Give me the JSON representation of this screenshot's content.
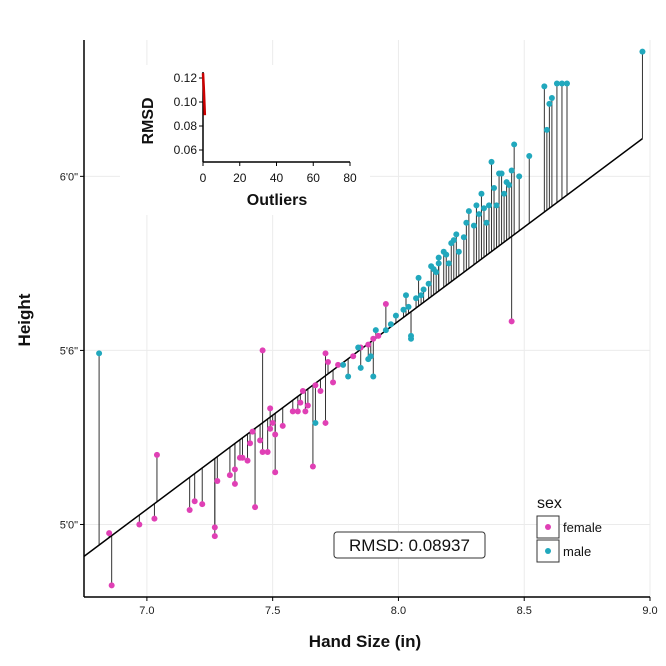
{
  "chart_data": [
    {
      "type": "scatter",
      "xlabel": "Hand Size (in)",
      "ylabel": "Height",
      "xlim": [
        6.75,
        9.0
      ],
      "ylim": [
        57.5,
        76.7
      ],
      "x_ticks": [
        7.0,
        7.5,
        8.0,
        8.5,
        9.0
      ],
      "x_tick_labels": [
        "7.0",
        "7.5",
        "8.0",
        "8.5",
        "9.0"
      ],
      "y_ticks": [
        60,
        66,
        72
      ],
      "y_tick_labels": [
        "5'0\"",
        "5'6\"",
        "6'0\""
      ],
      "grid": true,
      "fit_line": {
        "x": [
          6.75,
          8.97
        ],
        "y": [
          58.9,
          73.3
        ]
      },
      "residual_segments": true,
      "annotation": "RMSD: 0.08937",
      "legend": {
        "title": "sex",
        "position": "bottom-right",
        "entries": [
          "female",
          "male"
        ]
      },
      "colors": {
        "female": "#e040b5",
        "male": "#21a8bd",
        "fit_line": "#000000",
        "segment": "#333333"
      },
      "series": [
        {
          "name": "female",
          "points": [
            [
              6.85,
              59.7
            ],
            [
              6.86,
              57.9
            ],
            [
              6.97,
              60.0
            ],
            [
              7.03,
              60.2
            ],
            [
              7.04,
              62.4
            ],
            [
              7.17,
              60.5
            ],
            [
              7.19,
              60.8
            ],
            [
              7.22,
              60.7
            ],
            [
              7.27,
              59.9
            ],
            [
              7.27,
              59.6
            ],
            [
              7.28,
              61.5
            ],
            [
              7.33,
              61.7
            ],
            [
              7.35,
              61.9
            ],
            [
              7.35,
              61.4
            ],
            [
              7.37,
              62.3
            ],
            [
              7.38,
              62.3
            ],
            [
              7.4,
              62.2
            ],
            [
              7.41,
              62.8
            ],
            [
              7.42,
              63.2
            ],
            [
              7.43,
              60.6
            ],
            [
              7.45,
              62.9
            ],
            [
              7.46,
              62.5
            ],
            [
              7.46,
              66.0
            ],
            [
              7.48,
              62.5
            ],
            [
              7.49,
              64.0
            ],
            [
              7.49,
              63.3
            ],
            [
              7.5,
              63.5
            ],
            [
              7.51,
              63.1
            ],
            [
              7.51,
              61.8
            ],
            [
              7.54,
              63.4
            ],
            [
              7.58,
              63.9
            ],
            [
              7.6,
              63.9
            ],
            [
              7.61,
              64.2
            ],
            [
              7.62,
              64.6
            ],
            [
              7.63,
              63.9
            ],
            [
              7.64,
              64.1
            ],
            [
              7.66,
              62.0
            ],
            [
              7.67,
              64.8
            ],
            [
              7.69,
              64.6
            ],
            [
              7.71,
              65.9
            ],
            [
              7.71,
              63.5
            ],
            [
              7.72,
              65.6
            ],
            [
              7.74,
              64.9
            ],
            [
              7.76,
              65.5
            ],
            [
              7.82,
              65.8
            ],
            [
              7.85,
              66.1
            ],
            [
              7.88,
              66.2
            ],
            [
              7.9,
              66.4
            ],
            [
              7.92,
              66.5
            ],
            [
              7.95,
              67.6
            ],
            [
              8.45,
              67.0
            ]
          ]
        },
        {
          "name": "male",
          "points": [
            [
              6.81,
              65.9
            ],
            [
              7.67,
              63.5
            ],
            [
              7.78,
              65.5
            ],
            [
              7.8,
              65.1
            ],
            [
              7.84,
              66.1
            ],
            [
              7.85,
              65.4
            ],
            [
              7.88,
              65.7
            ],
            [
              7.89,
              65.8
            ],
            [
              7.9,
              65.1
            ],
            [
              7.91,
              66.7
            ],
            [
              7.95,
              66.7
            ],
            [
              7.97,
              66.9
            ],
            [
              7.99,
              67.2
            ],
            [
              8.02,
              67.4
            ],
            [
              8.03,
              67.9
            ],
            [
              8.04,
              67.5
            ],
            [
              8.05,
              66.4
            ],
            [
              8.05,
              66.5
            ],
            [
              8.07,
              67.8
            ],
            [
              8.08,
              68.5
            ],
            [
              8.09,
              67.9
            ],
            [
              8.1,
              68.1
            ],
            [
              8.12,
              68.3
            ],
            [
              8.13,
              68.9
            ],
            [
              8.14,
              68.8
            ],
            [
              8.15,
              68.7
            ],
            [
              8.16,
              69.2
            ],
            [
              8.16,
              69.0
            ],
            [
              8.18,
              69.4
            ],
            [
              8.19,
              69.3
            ],
            [
              8.2,
              69.0
            ],
            [
              8.21,
              69.7
            ],
            [
              8.22,
              69.8
            ],
            [
              8.23,
              70.0
            ],
            [
              8.24,
              69.4
            ],
            [
              8.26,
              69.9
            ],
            [
              8.27,
              70.4
            ],
            [
              8.28,
              70.8
            ],
            [
              8.3,
              70.3
            ],
            [
              8.31,
              71.0
            ],
            [
              8.32,
              70.7
            ],
            [
              8.33,
              71.4
            ],
            [
              8.34,
              70.9
            ],
            [
              8.35,
              70.4
            ],
            [
              8.36,
              71.0
            ],
            [
              8.37,
              72.5
            ],
            [
              8.38,
              71.6
            ],
            [
              8.39,
              71.0
            ],
            [
              8.4,
              72.1
            ],
            [
              8.41,
              72.1
            ],
            [
              8.42,
              71.4
            ],
            [
              8.43,
              71.8
            ],
            [
              8.44,
              71.7
            ],
            [
              8.45,
              72.2
            ],
            [
              8.46,
              73.1
            ],
            [
              8.48,
              72.0
            ],
            [
              8.52,
              72.7
            ],
            [
              8.58,
              75.1
            ],
            [
              8.59,
              73.6
            ],
            [
              8.6,
              74.5
            ],
            [
              8.61,
              74.7
            ],
            [
              8.63,
              75.2
            ],
            [
              8.65,
              75.2
            ],
            [
              8.67,
              75.2
            ],
            [
              8.97,
              76.3
            ]
          ]
        }
      ]
    },
    {
      "type": "line",
      "xlabel": "Outliers",
      "ylabel": "RMSD",
      "xlim": [
        0,
        80
      ],
      "ylim": [
        0.05,
        0.125
      ],
      "x_ticks": [
        0,
        20,
        40,
        60,
        80
      ],
      "x_tick_labels": [
        "0",
        "20",
        "40",
        "60",
        "80"
      ],
      "y_ticks": [
        0.06,
        0.08,
        0.1,
        0.12
      ],
      "y_tick_labels": [
        "0.06",
        "0.08",
        "0.10",
        "0.12"
      ],
      "grid": false,
      "colors": {
        "line": "#cc0000"
      },
      "series": [
        {
          "x": [
            0,
            0.2,
            0.4,
            0.6,
            0.8,
            1.0
          ],
          "y": [
            0.124,
            0.118,
            0.112,
            0.105,
            0.097,
            0.089
          ]
        }
      ]
    }
  ]
}
